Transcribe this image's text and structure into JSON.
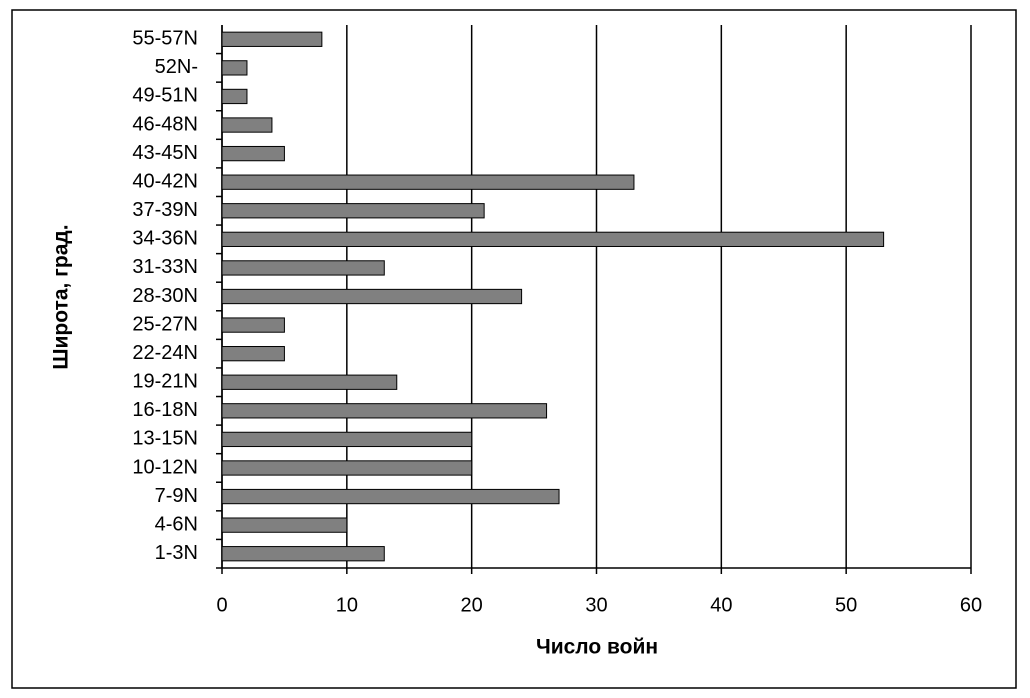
{
  "chart_data": {
    "type": "bar",
    "orientation": "horizontal",
    "x_label": "Число войн",
    "y_label": "Широта, град.",
    "categories": [
      "1-3N",
      "4-6N",
      "7-9N",
      "10-12N",
      "13-15N",
      "16-18N",
      "19-21N",
      "22-24N",
      "25-27N",
      "28-30N",
      "31-33N",
      "34-36N",
      "37-39N",
      "40-42N",
      "43-45N",
      "46-48N",
      "49-51N",
      "52N-",
      "55-57N"
    ],
    "values": [
      13,
      10,
      27,
      20,
      20,
      26,
      14,
      5,
      5,
      24,
      13,
      53,
      21,
      33,
      5,
      4,
      2,
      2,
      8
    ],
    "color": "#808080",
    "xlim": [
      0,
      60
    ],
    "xticks": [
      0,
      10,
      20,
      30,
      40,
      50,
      60
    ],
    "grid": true
  }
}
